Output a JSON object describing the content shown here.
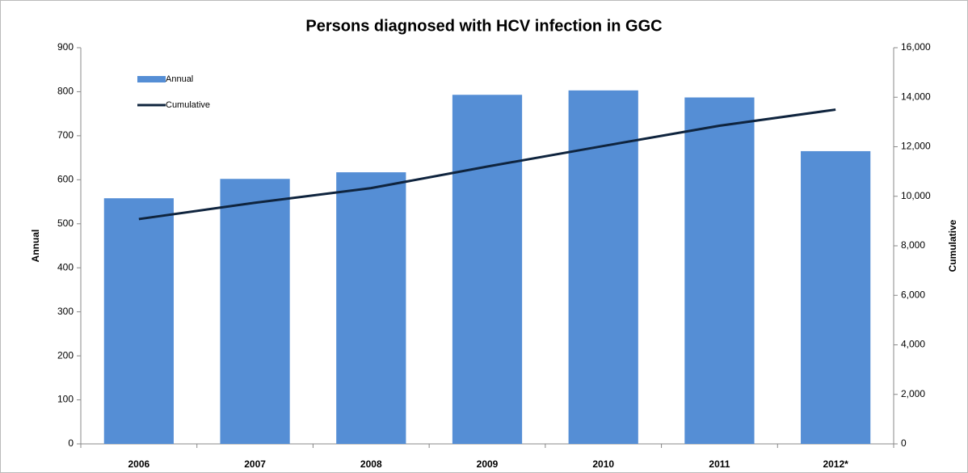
{
  "chart_data": {
    "type": "bar_line",
    "title": "Persons diagnosed with HCV infection in GGC",
    "categories": [
      "2006",
      "2007",
      "2008",
      "2009",
      "2010",
      "2011",
      "2012*"
    ],
    "series": [
      {
        "name": "Annual",
        "type": "bar",
        "color": "#558ed5",
        "values": [
          558,
          602,
          617,
          793,
          803,
          787,
          665
        ]
      },
      {
        "name": "Cumulative",
        "type": "line",
        "color": "#0f243e",
        "axis": "y2",
        "values": [
          9080,
          9740,
          10330,
          11200,
          12030,
          12850,
          13500
        ]
      }
    ],
    "ylabel": "Annual",
    "y2label": "Cumulative",
    "ylim": [
      0,
      900
    ],
    "yticks": [
      0,
      100,
      200,
      300,
      400,
      500,
      600,
      700,
      800,
      900
    ],
    "y2lim": [
      0,
      16000
    ],
    "y2ticks": [
      0,
      {
        "value": 2000,
        "label": "2,000"
      },
      {
        "value": 4000,
        "label": "4,000"
      },
      {
        "value": 6000,
        "label": "6,000"
      },
      {
        "value": 8000,
        "label": "8,000"
      },
      {
        "value": 10000,
        "label": "10,000"
      },
      {
        "value": 12000,
        "label": "12,000"
      },
      {
        "value": 14000,
        "label": "14,000"
      },
      {
        "value": 16000,
        "label": "16,000"
      }
    ],
    "legend": "upper left",
    "grid": false
  }
}
